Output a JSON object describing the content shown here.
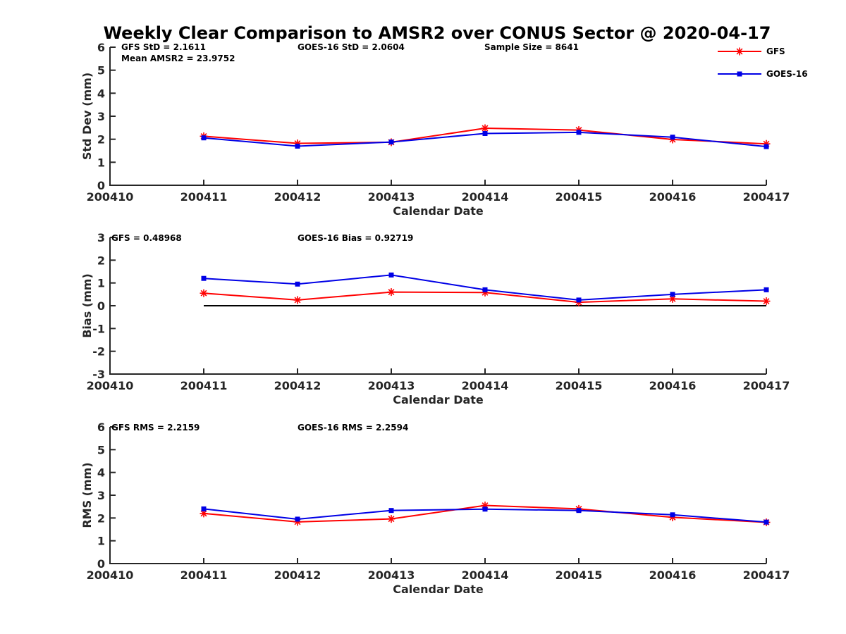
{
  "title": "Weekly Clear Comparison to AMSR2 over CONUS Sector @ 2020-04-17",
  "legend": {
    "placement": "top-right",
    "entries": [
      {
        "label": "GFS",
        "color": "#ff0000",
        "marker": "asterisk"
      },
      {
        "label": "GOES-16",
        "color": "#0000e6",
        "marker": "square"
      }
    ]
  },
  "chart_data": [
    {
      "type": "line",
      "xlabel": "Calendar Date",
      "ylabel": "Std Dev (mm)",
      "x_ticks": [
        "200410",
        "200411",
        "200412",
        "200413",
        "200414",
        "200415",
        "200416",
        "200417"
      ],
      "y_ticks": [
        "0",
        "1",
        "2",
        "3",
        "4",
        "5",
        "6"
      ],
      "ylim": [
        0,
        6
      ],
      "x": [
        "200411",
        "200412",
        "200413",
        "200414",
        "200415",
        "200416",
        "200417"
      ],
      "series": [
        {
          "name": "GFS",
          "color": "#ff0000",
          "values": [
            2.13,
            1.82,
            1.87,
            2.48,
            2.4,
            1.99,
            1.8
          ]
        },
        {
          "name": "GOES-16",
          "color": "#0000e6",
          "values": [
            2.06,
            1.7,
            1.88,
            2.25,
            2.3,
            2.09,
            1.68
          ]
        }
      ],
      "annotations": [
        "GFS StD = 2.1611",
        "Mean AMSR2 = 23.9752",
        "GOES-16 StD = 2.0604",
        "Sample Size = 8641"
      ],
      "zero_line": false
    },
    {
      "type": "line",
      "xlabel": "Calendar Date",
      "ylabel": "Bias (mm)",
      "x_ticks": [
        "200410",
        "200411",
        "200412",
        "200413",
        "200414",
        "200415",
        "200416",
        "200417"
      ],
      "y_ticks": [
        "-3",
        "-2",
        "-1",
        "0",
        "1",
        "2",
        "3"
      ],
      "ylim": [
        -3,
        3
      ],
      "x": [
        "200411",
        "200412",
        "200413",
        "200414",
        "200415",
        "200416",
        "200417"
      ],
      "series": [
        {
          "name": "GFS",
          "color": "#ff0000",
          "values": [
            0.55,
            0.25,
            0.6,
            0.58,
            0.15,
            0.3,
            0.2
          ]
        },
        {
          "name": "GOES-16",
          "color": "#0000e6",
          "values": [
            1.2,
            0.95,
            1.35,
            0.7,
            0.25,
            0.5,
            0.7
          ]
        }
      ],
      "annotations": [
        "GFS = 0.48968",
        "GOES-16 Bias  = 0.92719"
      ],
      "zero_line": true
    },
    {
      "type": "line",
      "xlabel": "Calendar Date",
      "ylabel": "RMS (mm)",
      "x_ticks": [
        "200410",
        "200411",
        "200412",
        "200413",
        "200414",
        "200415",
        "200416",
        "200417"
      ],
      "y_ticks": [
        "0",
        "1",
        "2",
        "3",
        "4",
        "5",
        "6"
      ],
      "ylim": [
        0,
        6
      ],
      "x": [
        "200411",
        "200412",
        "200413",
        "200414",
        "200415",
        "200416",
        "200417"
      ],
      "series": [
        {
          "name": "GFS",
          "color": "#ff0000",
          "values": [
            2.2,
            1.83,
            1.96,
            2.55,
            2.4,
            2.03,
            1.81
          ]
        },
        {
          "name": "GOES-16",
          "color": "#0000e6",
          "values": [
            2.4,
            1.95,
            2.33,
            2.39,
            2.33,
            2.14,
            1.82
          ]
        }
      ],
      "annotations": [
        "GFS RMS = 2.2159",
        "GOES-16 RMS = 2.2594"
      ],
      "zero_line": false
    }
  ]
}
